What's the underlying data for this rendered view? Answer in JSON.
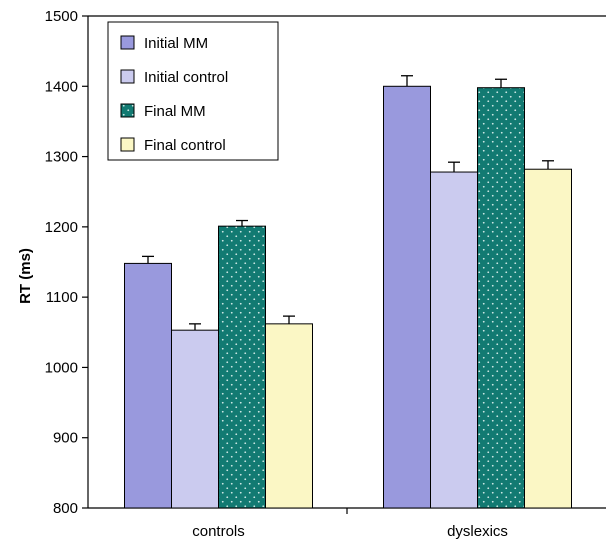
{
  "chart_data": {
    "type": "bar",
    "title": "",
    "xlabel": "",
    "ylabel": "RT (ms)",
    "ylim": [
      800,
      1500
    ],
    "yticks": [
      800,
      900,
      1000,
      1100,
      1200,
      1300,
      1400,
      1500
    ],
    "categories": [
      "controls",
      "dyslexics"
    ],
    "grid": false,
    "legend_position": "top-left",
    "series": [
      {
        "name": "Initial MM",
        "values": [
          1148,
          1400
        ],
        "errors": [
          10,
          15
        ],
        "color": "#9999dd",
        "pattern": "none"
      },
      {
        "name": "Initial control",
        "values": [
          1053,
          1278
        ],
        "errors": [
          9,
          14
        ],
        "color": "#cbcbef",
        "pattern": "none"
      },
      {
        "name": "Final MM",
        "values": [
          1201,
          1398
        ],
        "errors": [
          8,
          12
        ],
        "color": "#127a72",
        "pattern": "dots"
      },
      {
        "name": "Final control",
        "values": [
          1062,
          1282
        ],
        "errors": [
          11,
          12
        ],
        "color": "#fbf7c5",
        "pattern": "none"
      }
    ]
  }
}
